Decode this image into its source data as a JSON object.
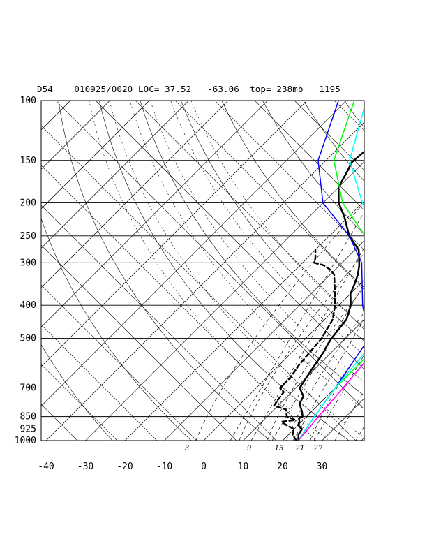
{
  "header": {
    "station": "D54",
    "datetime": "010925/0020",
    "loc_label": "LOC=",
    "lat": "37.52",
    "lon": "-63.06",
    "top_label": "top=",
    "top_value": "238mb",
    "code": "1195"
  },
  "chart_data": {
    "type": "line",
    "y_scale": "log-pressure",
    "pressure_levels": [
      100,
      150,
      200,
      250,
      300,
      400,
      500,
      700,
      850,
      925,
      1000
    ],
    "temperature_ticks": [
      -40,
      -30,
      -20,
      -10,
      0,
      10,
      20,
      30
    ],
    "xlim": [
      -40,
      40
    ],
    "ylim": [
      1000,
      100
    ],
    "mixing_ratio_labels": [
      "3",
      "9",
      "15",
      "21",
      "27"
    ],
    "series": [
      {
        "color": "#000000",
        "dash": false,
        "width": 2.5,
        "points": [
          [
            24,
            1000
          ],
          [
            22.5,
            960
          ],
          [
            22,
            925
          ],
          [
            20,
            900
          ],
          [
            19.5,
            880
          ],
          [
            18.5,
            860
          ],
          [
            19,
            850
          ],
          [
            17.5,
            820
          ],
          [
            15,
            780
          ],
          [
            14.5,
            760
          ],
          [
            14,
            740
          ],
          [
            12.5,
            720
          ],
          [
            11,
            700
          ],
          [
            10,
            650
          ],
          [
            9,
            600
          ],
          [
            8,
            550
          ],
          [
            7,
            520
          ],
          [
            6.5,
            500
          ],
          [
            6,
            470
          ],
          [
            5.5,
            440
          ],
          [
            3,
            400
          ],
          [
            0,
            370
          ],
          [
            -1.5,
            345
          ],
          [
            -3,
            325
          ],
          [
            -5,
            305
          ],
          [
            -9,
            275
          ],
          [
            -15,
            250
          ],
          [
            -21,
            220
          ],
          [
            -26,
            200
          ],
          [
            -30,
            180
          ],
          [
            -32,
            160
          ],
          [
            -33,
            152
          ],
          [
            -32.5,
            140
          ],
          [
            -30,
            130
          ],
          [
            -23,
            115
          ],
          [
            -15,
            100
          ]
        ]
      },
      {
        "color": "#000000",
        "dash": true,
        "width": 2.5,
        "points": [
          [
            23.5,
            1000
          ],
          [
            21,
            960
          ],
          [
            20,
            925
          ],
          [
            17,
            900
          ],
          [
            15,
            880
          ],
          [
            18,
            870
          ],
          [
            15,
            850
          ],
          [
            14,
            830
          ],
          [
            13,
            810
          ],
          [
            9,
            790
          ],
          [
            8.5,
            760
          ],
          [
            8,
            720
          ],
          [
            6,
            700
          ],
          [
            6,
            650
          ],
          [
            5,
            600
          ],
          [
            4.5,
            550
          ],
          [
            4,
            500
          ],
          [
            3,
            470
          ],
          [
            2,
            440
          ],
          [
            -1,
            400
          ],
          [
            -5,
            360
          ],
          [
            -9,
            325
          ],
          [
            -11,
            315
          ],
          [
            -14,
            305
          ],
          [
            -17,
            300
          ],
          [
            -18,
            290
          ],
          [
            -20,
            275
          ]
        ]
      },
      {
        "color": "#0000ff",
        "dash": false,
        "width": 1.5,
        "points": [
          [
            24,
            1000
          ],
          [
            22,
            850
          ],
          [
            20,
            700
          ],
          [
            16,
            500
          ],
          [
            6,
            400
          ],
          [
            -5,
            300
          ],
          [
            -15,
            250
          ],
          [
            -30,
            200
          ],
          [
            -42,
            150
          ],
          [
            -52,
            100
          ]
        ]
      },
      {
        "color": "#00ff00",
        "dash": false,
        "width": 1.5,
        "points": [
          [
            24,
            1000
          ],
          [
            22,
            850
          ],
          [
            20,
            700
          ],
          [
            20,
            500
          ],
          [
            10,
            400
          ],
          [
            0,
            300
          ],
          [
            -11,
            250
          ],
          [
            -25,
            200
          ],
          [
            -38,
            150
          ],
          [
            -48,
            100
          ]
        ]
      },
      {
        "color": "#00ffff",
        "dash": false,
        "width": 1.5,
        "points": [
          [
            24,
            1000
          ],
          [
            22,
            850
          ],
          [
            20,
            700
          ],
          [
            18,
            500
          ],
          [
            12,
            400
          ],
          [
            1,
            300
          ],
          [
            -8,
            250
          ],
          [
            -20,
            200
          ],
          [
            -34,
            150
          ],
          [
            -45,
            100
          ]
        ]
      },
      {
        "color": "#ff00ff",
        "dash": false,
        "width": 1.5,
        "points": [
          [
            24,
            1000
          ],
          [
            23,
            850
          ],
          [
            22,
            700
          ],
          [
            20,
            500
          ],
          [
            15,
            400
          ],
          [
            7,
            300
          ],
          [
            -3,
            250
          ],
          [
            -15,
            200
          ],
          [
            -30,
            150
          ],
          [
            -42,
            100
          ]
        ]
      }
    ]
  }
}
